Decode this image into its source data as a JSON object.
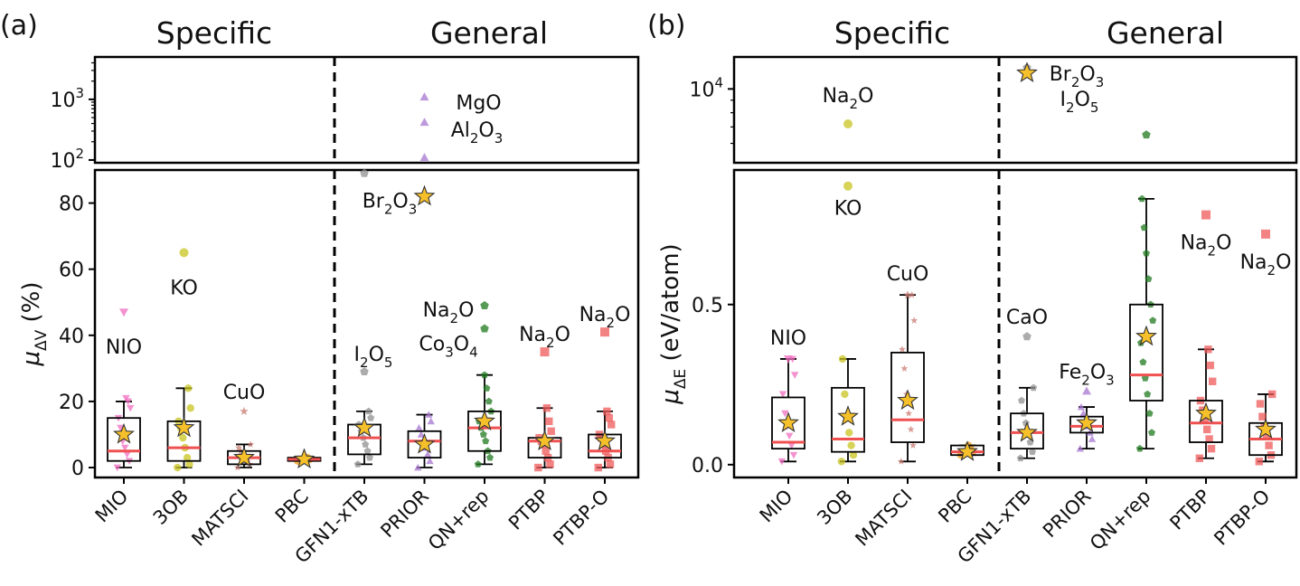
{
  "figure": {
    "chart_data": [
      {
        "type": "box",
        "panel_label": "(a)",
        "group_labels": [
          "Specific",
          "General"
        ],
        "ylabel_main": "μ",
        "ylabel_sub": "ΔV",
        "ylabel_unit": " (%)",
        "categories": [
          "MIO",
          "3OB",
          "MATSCI",
          "PBC",
          "GFN1-xTB",
          "PRIOR",
          "QN+rep",
          "PTBP",
          "PTBP-O"
        ],
        "colors": [
          "#f06ec0",
          "#c8c420",
          "#c97b72",
          "#f2a01a",
          "#909090",
          "#a777d0",
          "#1f7a1f",
          "#ef5a5a",
          "#ef5a5a"
        ],
        "markers": [
          "triangle-down",
          "circle",
          "star",
          "circle",
          "pentagon",
          "triangle-up",
          "pentagon",
          "square",
          "square"
        ],
        "upper_axis": {
          "scale": "log",
          "ylim": [
            90,
            5000
          ],
          "ticks": [
            100,
            1000
          ],
          "tick_labels": [
            {
              "base": "10",
              "exp": "2"
            },
            {
              "base": "10",
              "exp": "3"
            }
          ]
        },
        "lower_axis": {
          "scale": "linear",
          "ylim": [
            -3,
            90
          ],
          "ticks": [
            0,
            20,
            40,
            60,
            80
          ],
          "tick_labels": [
            "0",
            "20",
            "40",
            "60",
            "80"
          ]
        },
        "boxes": [
          {
            "q1": 2,
            "median": 5,
            "q3": 15,
            "whislo": 0,
            "whishi": 20,
            "mean": 10,
            "points": [
              0,
              2,
              4,
              6,
              8,
              12,
              15,
              18,
              20,
              21
            ]
          },
          {
            "q1": 2,
            "median": 6,
            "q3": 14,
            "whislo": 0,
            "whishi": 24,
            "mean": 12,
            "points": [
              0,
              1,
              3,
              6,
              9,
              12,
              14,
              18,
              24
            ]
          },
          {
            "q1": 1,
            "median": 3,
            "q3": 5,
            "whislo": 0,
            "whishi": 7,
            "mean": 3,
            "points": [
              0,
              1,
              2,
              3,
              4,
              5,
              6,
              7
            ]
          },
          {
            "q1": 2,
            "median": 2.5,
            "q3": 3,
            "whislo": 2,
            "whishi": 3,
            "mean": 2.5,
            "points": [
              2,
              2.5,
              3
            ]
          },
          {
            "q1": 4,
            "median": 9,
            "q3": 13,
            "whislo": 1,
            "whishi": 17,
            "mean": 12,
            "points": [
              1,
              3,
              5,
              7,
              9,
              11,
              13,
              15,
              17
            ]
          },
          {
            "q1": 3,
            "median": 8,
            "q3": 11,
            "whislo": 0,
            "whishi": 16,
            "mean": 7,
            "points": [
              0,
              2,
              4,
              6,
              8,
              10,
              12,
              14,
              16
            ]
          },
          {
            "q1": 5,
            "median": 12,
            "q3": 17,
            "whislo": 1,
            "whishi": 28,
            "mean": 14,
            "points": [
              1,
              3,
              5,
              8,
              10,
              12,
              14,
              17,
              20,
              24,
              28
            ]
          },
          {
            "q1": 3,
            "median": 8,
            "q3": 9,
            "whislo": 0,
            "whishi": 18,
            "mean": 8,
            "points": [
              0,
              1,
              3,
              5,
              7,
              8,
              9,
              11,
              14,
              18
            ]
          },
          {
            "q1": 3,
            "median": 5,
            "q3": 10,
            "whislo": 0,
            "whishi": 17,
            "mean": 8,
            "points": [
              0,
              1,
              3,
              5,
              7,
              9,
              10,
              13,
              15,
              17
            ]
          }
        ],
        "outliers": [
          {
            "cat": 0,
            "value": 47,
            "label": "NIO",
            "label_dy": 38
          },
          {
            "cat": 1,
            "value": 65,
            "label": "KO",
            "label_dy": 38
          },
          {
            "cat": 2,
            "value": 17,
            "label": "CuO",
            "label_dy": -22
          },
          {
            "cat": 4,
            "value": 89,
            "label": "Br",
            "label_sub": "2",
            "label_tail": "O",
            "label_sub2": "3",
            "label_dx": 28,
            "label_dy": 30
          },
          {
            "cat": 4,
            "value": 29,
            "label": "I",
            "label_sub": "2",
            "label_tail": "O",
            "label_sub2": "5",
            "label_dx": 10,
            "label_dy": -20
          },
          {
            "cat": 5,
            "value": 110,
            "star": false
          },
          {
            "cat": 5,
            "value": 82,
            "star": true
          },
          {
            "cat": 5,
            "value": 1100,
            "label": "MgO",
            "label_dx": 60,
            "label_dy": 6
          },
          {
            "cat": 5,
            "value": 420,
            "label": "Al",
            "label_sub": "2",
            "label_tail": "O",
            "label_sub2": "3",
            "label_dx": 58,
            "label_dy": 8
          },
          {
            "cat": 6,
            "value": 49,
            "label": "Na",
            "label_sub": "2",
            "label_tail": "O",
            "label_dx": -40,
            "label_dy": 4
          },
          {
            "cat": 6,
            "value": 42,
            "label": "Co",
            "label_sub": "3",
            "label_tail": "O",
            "label_sub2": "4",
            "label_dx": -40,
            "label_dy": 16
          },
          {
            "cat": 7,
            "value": 35,
            "label": "Na",
            "label_sub": "2",
            "label_tail": "O",
            "label_dy": -20
          },
          {
            "cat": 8,
            "value": 41,
            "label": "Na",
            "label_sub": "2",
            "label_tail": "O",
            "label_dy": -20
          }
        ]
      },
      {
        "type": "box",
        "panel_label": "(b)",
        "group_labels": [
          "Specific",
          "General"
        ],
        "ylabel_main": "μ",
        "ylabel_sub": "ΔE",
        "ylabel_unit": " (eV/atom)",
        "categories": [
          "MIO",
          "3OB",
          "MATSCI",
          "PBC",
          "GFN1-xTB",
          "PRIOR",
          "QN+rep",
          "PTBP",
          "PTBP-O"
        ],
        "colors": [
          "#f06ec0",
          "#c8c420",
          "#c97b72",
          "#f2a01a",
          "#909090",
          "#a777d0",
          "#1f7a1f",
          "#ef5a5a",
          "#ef5a5a"
        ],
        "markers": [
          "triangle-down",
          "circle",
          "star",
          "circle",
          "pentagon",
          "triangle-up",
          "pentagon",
          "square",
          "square"
        ],
        "upper_axis": {
          "scale": "log",
          "ylim": [
            5000,
            13500
          ],
          "ticks": [
            10000
          ],
          "tick_labels": [
            {
              "base": "10",
              "exp": "4"
            }
          ]
        },
        "lower_axis": {
          "scale": "linear",
          "ylim": [
            -0.04,
            0.92
          ],
          "ticks": [
            0,
            0.5
          ],
          "tick_labels": [
            "0.0",
            "0.5"
          ]
        },
        "boxes": [
          {
            "q1": 0.05,
            "median": 0.07,
            "q3": 0.21,
            "whislo": 0.01,
            "whishi": 0.33,
            "mean": 0.13,
            "points": [
              0.01,
              0.03,
              0.06,
              0.09,
              0.12,
              0.16,
              0.22,
              0.28,
              0.33
            ]
          },
          {
            "q1": 0.04,
            "median": 0.08,
            "q3": 0.24,
            "whislo": 0.01,
            "whishi": 0.33,
            "mean": 0.15,
            "points": [
              0.01,
              0.03,
              0.06,
              0.1,
              0.15,
              0.22,
              0.33
            ]
          },
          {
            "q1": 0.07,
            "median": 0.14,
            "q3": 0.35,
            "whislo": 0.01,
            "whishi": 0.53,
            "mean": 0.2,
            "points": [
              0.01,
              0.06,
              0.11,
              0.16,
              0.22,
              0.3,
              0.36,
              0.45,
              0.53
            ]
          },
          {
            "q1": 0.03,
            "median": 0.04,
            "q3": 0.06,
            "whislo": 0.03,
            "whishi": 0.06,
            "mean": 0.04,
            "points": [
              0.03,
              0.04,
              0.05,
              0.06
            ]
          },
          {
            "q1": 0.05,
            "median": 0.1,
            "q3": 0.16,
            "whislo": 0.02,
            "whishi": 0.24,
            "mean": 0.1,
            "points": [
              0.02,
              0.04,
              0.07,
              0.1,
              0.13,
              0.16,
              0.2,
              0.24
            ]
          },
          {
            "q1": 0.1,
            "median": 0.12,
            "q3": 0.15,
            "whislo": 0.05,
            "whishi": 0.18,
            "mean": 0.13,
            "points": [
              0.05,
              0.08,
              0.1,
              0.12,
              0.14,
              0.16,
              0.18
            ]
          },
          {
            "q1": 0.2,
            "median": 0.28,
            "q3": 0.5,
            "whislo": 0.05,
            "whishi": 0.83,
            "mean": 0.4,
            "points": [
              0.05,
              0.1,
              0.16,
              0.22,
              0.27,
              0.32,
              0.38,
              0.45,
              0.5,
              0.58,
              0.66,
              0.74,
              0.83
            ]
          },
          {
            "q1": 0.07,
            "median": 0.13,
            "q3": 0.2,
            "whislo": 0.02,
            "whishi": 0.36,
            "mean": 0.16,
            "points": [
              0.02,
              0.05,
              0.08,
              0.11,
              0.14,
              0.17,
              0.2,
              0.26,
              0.31,
              0.36
            ]
          },
          {
            "q1": 0.03,
            "median": 0.08,
            "q3": 0.13,
            "whislo": 0.01,
            "whishi": 0.22,
            "mean": 0.11,
            "points": [
              0.01,
              0.03,
              0.06,
              0.09,
              0.12,
              0.15,
              0.19,
              0.22
            ]
          }
        ],
        "outliers": [
          {
            "cat": 1,
            "value": 7200,
            "label": "Na",
            "label_sub": "2",
            "label_tail": "O",
            "label_dy": -32
          },
          {
            "cat": 1,
            "value": 0.87,
            "label": "KO",
            "label_dy": 24
          },
          {
            "cat": 2,
            "value": 0.53,
            "label": "CuO",
            "label_dy": -24
          },
          {
            "cat": 0,
            "value": 0.33,
            "label": "NIO",
            "label_dy": -24
          },
          {
            "cat": 4,
            "value": 0.4,
            "label": "CaO",
            "label_dy": -22
          },
          {
            "cat": 5,
            "value": 0.23,
            "label": "Fe",
            "label_sub": "2",
            "label_tail": "O",
            "label_sub2": "3",
            "label_dy": -22
          },
          {
            "cat": 4,
            "value": 12200,
            "label": "Br",
            "label_sub": "2",
            "label_tail": "O",
            "label_sub2": "3",
            "label_dx": 55,
            "label_dy": 6
          },
          {
            "cat": 4,
            "value": 11600,
            "star": true,
            "label": "I",
            "label_sub": "2",
            "label_tail": "O",
            "label_sub2": "5",
            "label_dx": 58,
            "label_dy": 28
          },
          {
            "cat": 6,
            "value": 6500
          },
          {
            "cat": 7,
            "value": 0.78,
            "label": "Na",
            "label_sub": "2",
            "label_tail": "O",
            "label_dy": 30
          },
          {
            "cat": 8,
            "value": 0.72,
            "label": "Na",
            "label_sub": "2",
            "label_tail": "O",
            "label_dy": 30
          }
        ]
      }
    ]
  }
}
